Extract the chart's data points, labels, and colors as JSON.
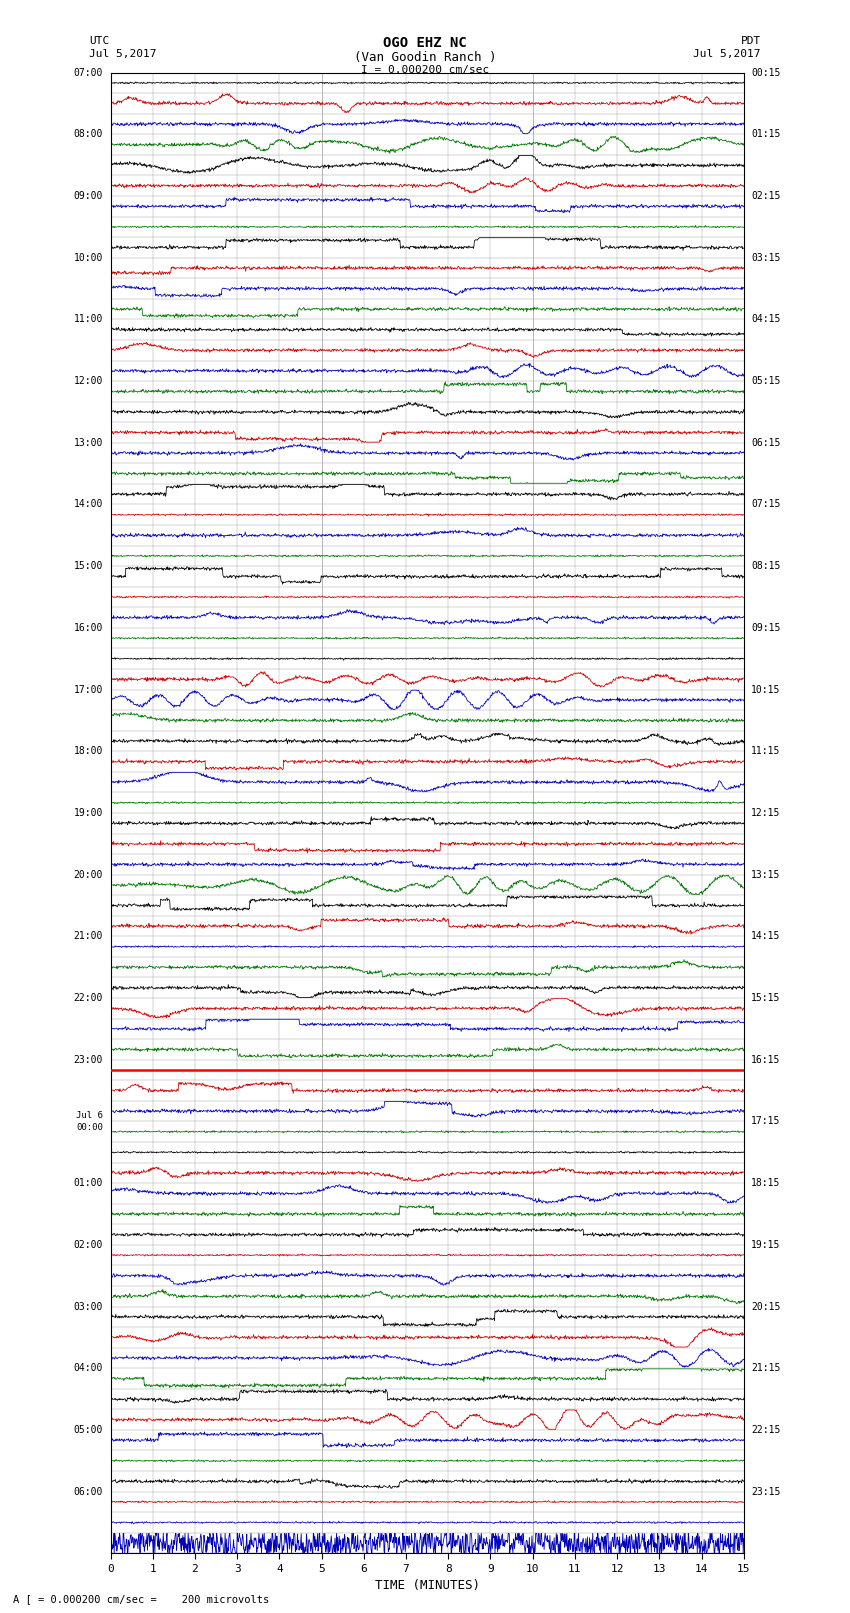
{
  "title_line1": "OGO EHZ NC",
  "title_line2": "(Van Goodin Ranch )",
  "scale_label": "I = 0.000200 cm/sec",
  "left_label_top": "UTC",
  "left_label_date": "Jul 5,2017",
  "right_label_top": "PDT",
  "right_label_date": "Jul 5,2017",
  "bottom_label": "TIME (MINUTES)",
  "footnote": "= 0.000200 cm/sec =    200 microvolts",
  "footnote_prefix": "A [",
  "utc_label_list": [
    "07:00",
    "08:00",
    "09:00",
    "10:00",
    "11:00",
    "12:00",
    "13:00",
    "14:00",
    "15:00",
    "16:00",
    "17:00",
    "18:00",
    "19:00",
    "20:00",
    "21:00",
    "22:00",
    "23:00",
    "00:00",
    "01:00",
    "02:00",
    "03:00",
    "04:00",
    "05:00",
    "06:00"
  ],
  "jul6_idx": 17,
  "pdt_label_list": [
    "00:15",
    "01:15",
    "02:15",
    "03:15",
    "04:15",
    "05:15",
    "06:15",
    "07:15",
    "08:15",
    "09:15",
    "10:15",
    "11:15",
    "12:15",
    "13:15",
    "14:15",
    "15:15",
    "16:15",
    "17:15",
    "18:15",
    "19:15",
    "20:15",
    "21:15",
    "22:15",
    "23:15"
  ],
  "n_rows": 72,
  "n_cols": 15,
  "bg_color": "#ffffff",
  "grid_color": "#aaaaaa",
  "colors": {
    "black": "#000000",
    "red": "#cc0000",
    "blue": "#0000bb",
    "green": "#007700"
  },
  "highlight_row": 48,
  "highlight_color": "#ff0000",
  "color_pattern": [
    "black",
    "red",
    "blue",
    "green"
  ]
}
